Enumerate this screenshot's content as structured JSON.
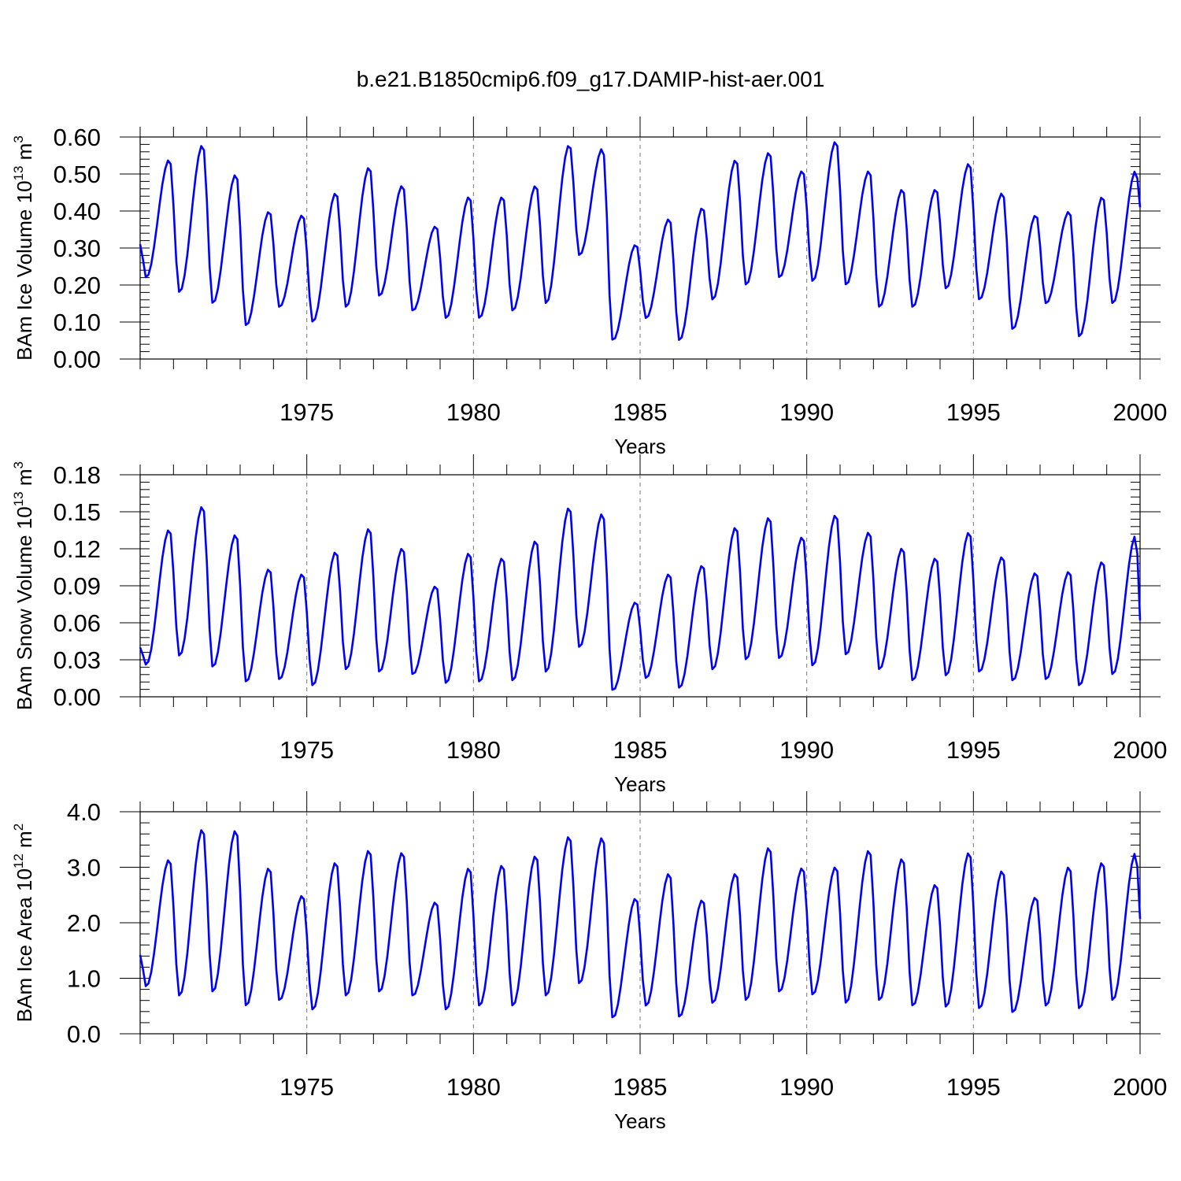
{
  "title": "b.e21.B1850cmip6.f09_g17.DAMIP-hist-aer.001",
  "line_color": "#0000ff",
  "chart_data": [
    {
      "type": "line",
      "ylabel_main": "BAm Ice Volume 10",
      "ylabel_exp": "13",
      "ylabel_unit": "m",
      "ylabel_unit_exp": "3",
      "xlabel": "Years",
      "xlim": [
        1970.0,
        2000.0
      ],
      "ylim": [
        0.0,
        0.6
      ],
      "x_ticks": [
        1975,
        1980,
        1985,
        1990,
        1995,
        2000
      ],
      "x_tick_labels": [
        "1975",
        "1980",
        "1985",
        "1990",
        "1995",
        "2000"
      ],
      "y_ticks": [
        0.0,
        0.1,
        0.2,
        0.3,
        0.4,
        0.5,
        0.6
      ],
      "y_tick_labels": [
        "0.00",
        "0.10",
        "0.20",
        "0.30",
        "0.40",
        "0.50",
        "0.60"
      ],
      "minor_y": 0.02,
      "grid": "dashed vertical lines at 5-year ticks",
      "series": [
        {
          "name": "BAm Ice Volume",
          "peaks": [
            0.54,
            0.58,
            0.5,
            0.4,
            0.39,
            0.45,
            0.52,
            0.47,
            0.36,
            0.44,
            0.44,
            0.47,
            0.58,
            0.57,
            0.31,
            0.38,
            0.41,
            0.54,
            0.56,
            0.51,
            0.59,
            0.51,
            0.46,
            0.46,
            0.53,
            0.45,
            0.39,
            0.4,
            0.44,
            0.51
          ],
          "troughs": [
            0.22,
            0.18,
            0.15,
            0.09,
            0.14,
            0.1,
            0.14,
            0.17,
            0.13,
            0.11,
            0.11,
            0.13,
            0.15,
            0.28,
            0.05,
            0.11,
            0.05,
            0.16,
            0.2,
            0.22,
            0.21,
            0.2,
            0.14,
            0.14,
            0.19,
            0.16,
            0.08,
            0.15,
            0.06,
            0.15
          ],
          "start": 0.31,
          "end": 0.41
        }
      ]
    },
    {
      "type": "line",
      "ylabel_main": "BAm Snow Volume 10",
      "ylabel_exp": "13",
      "ylabel_unit": "m",
      "ylabel_unit_exp": "3",
      "xlabel": "Years",
      "xlim": [
        1970.0,
        2000.0
      ],
      "ylim": [
        0.0,
        0.18
      ],
      "x_ticks": [
        1975,
        1980,
        1985,
        1990,
        1995,
        2000
      ],
      "x_tick_labels": [
        "1975",
        "1980",
        "1985",
        "1990",
        "1995",
        "2000"
      ],
      "y_ticks": [
        0.0,
        0.03,
        0.06,
        0.09,
        0.12,
        0.15,
        0.18
      ],
      "y_tick_labels": [
        "0.00",
        "0.03",
        "0.06",
        "0.09",
        "0.12",
        "0.15",
        "0.18"
      ],
      "minor_y": 0.006,
      "grid": "dashed vertical lines at 5-year ticks",
      "series": [
        {
          "name": "BAm Snow Volume",
          "peaks": [
            0.136,
            0.155,
            0.132,
            0.104,
            0.1,
            0.118,
            0.137,
            0.121,
            0.09,
            0.117,
            0.113,
            0.127,
            0.154,
            0.149,
            0.077,
            0.1,
            0.107,
            0.138,
            0.146,
            0.13,
            0.148,
            0.134,
            0.121,
            0.113,
            0.134,
            0.114,
            0.101,
            0.102,
            0.11,
            0.131
          ],
          "troughs": [
            0.026,
            0.033,
            0.024,
            0.012,
            0.014,
            0.009,
            0.022,
            0.02,
            0.018,
            0.011,
            0.012,
            0.013,
            0.02,
            0.04,
            0.005,
            0.015,
            0.007,
            0.022,
            0.03,
            0.031,
            0.025,
            0.034,
            0.022,
            0.013,
            0.017,
            0.02,
            0.013,
            0.014,
            0.009,
            0.018
          ],
          "start": 0.04,
          "end": 0.062
        }
      ]
    },
    {
      "type": "line",
      "ylabel_main": "BAm Ice Area 10",
      "ylabel_exp": "12",
      "ylabel_unit": "m",
      "ylabel_unit_exp": "2",
      "xlabel": "Years",
      "xlim": [
        1970.0,
        2000.0
      ],
      "ylim": [
        0.0,
        4.0
      ],
      "x_ticks": [
        1975,
        1980,
        1985,
        1990,
        1995,
        2000
      ],
      "x_tick_labels": [
        "1975",
        "1980",
        "1985",
        "1990",
        "1995",
        "2000"
      ],
      "y_ticks": [
        0.0,
        1.0,
        2.0,
        3.0,
        4.0
      ],
      "y_tick_labels": [
        "0.0",
        "1.0",
        "2.0",
        "3.0",
        "4.0"
      ],
      "minor_y": 0.2,
      "grid": "dashed vertical lines at 5-year ticks",
      "series": [
        {
          "name": "BAm Ice Area",
          "peaks": [
            3.15,
            3.7,
            3.68,
            3.0,
            2.5,
            3.1,
            3.32,
            3.28,
            2.38,
            3.0,
            3.05,
            3.22,
            3.57,
            3.55,
            2.45,
            2.9,
            2.42,
            2.9,
            3.37,
            3.0,
            3.02,
            3.32,
            3.17,
            2.7,
            3.28,
            2.95,
            2.47,
            3.02,
            3.1,
            3.27
          ],
          "troughs": [
            0.85,
            0.68,
            0.75,
            0.5,
            0.6,
            0.43,
            0.68,
            0.75,
            0.68,
            0.43,
            0.5,
            0.5,
            0.68,
            0.9,
            0.28,
            0.5,
            0.3,
            0.55,
            0.6,
            0.75,
            0.7,
            0.55,
            0.6,
            0.5,
            0.48,
            0.45,
            0.38,
            0.5,
            0.45,
            0.6
          ],
          "start": 1.42,
          "end": 2.07
        }
      ]
    }
  ]
}
